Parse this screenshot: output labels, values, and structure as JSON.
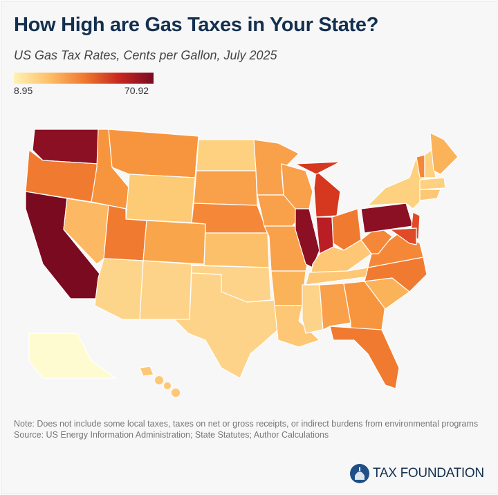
{
  "header": {
    "title": "How High are Gas Taxes in Your State?",
    "subtitle": "US Gas Tax Rates, Cents per Gallon, July 2025"
  },
  "legend": {
    "min": "8.95",
    "max": "70.92",
    "colors": [
      "#fff2b3",
      "#fdc06a",
      "#f07a30",
      "#c8281f",
      "#7a0a22"
    ]
  },
  "map": {
    "type": "choropleth",
    "state_fills": {
      "WA": "#8b1024",
      "OR": "#f07a30",
      "CA": "#7a0a20",
      "NV": "#fcb862",
      "ID": "#f7953e",
      "MT": "#f7953e",
      "WY": "#fdcb75",
      "UT": "#f07a30",
      "CO": "#f9a54c",
      "AZ": "#fdd58a",
      "NM": "#fdd38a",
      "ND": "#fdd17f",
      "SD": "#f9a04a",
      "NE": "#f58838",
      "KS": "#fcc06a",
      "OK": "#fdd38a",
      "TX": "#fdd38a",
      "MN": "#f9a04a",
      "IA": "#f9a04a",
      "MO": "#f9a04a",
      "AR": "#fbb35a",
      "LA": "#fdc776",
      "WI": "#f9a04a",
      "IL": "#8b1024",
      "MI": "#d5371f",
      "MI_UP": "#d5371f",
      "IN": "#b81e24",
      "OH": "#f07a30",
      "KY": "#fdc776",
      "TN": "#fdc776",
      "MS": "#fdd38a",
      "AL": "#f9a04a",
      "GA": "#f7953e",
      "FL": "#f07a30",
      "SC": "#fbb35a",
      "NC": "#f07a30",
      "VA": "#f58838",
      "WV": "#f58838",
      "PA": "#8b1024",
      "NY": "#fdd17f",
      "NJ": "#e04a26",
      "MD": "#e04a26",
      "ME": "#fbb35a",
      "VT": "#f58838",
      "NH": "#fdd17f",
      "MA": "#fdd17f",
      "CT": "#fdc776",
      "AK": "#fffbd0",
      "HI": "#fdc776"
    }
  },
  "footer": {
    "note": "Note: Does not include some local taxes, taxes on net or gross receipts, or indirect burdens from environmental programs",
    "source": "Source: US Energy Information Administration; State Statutes; Author Calculations",
    "logo": "TAX FOUNDATION"
  }
}
